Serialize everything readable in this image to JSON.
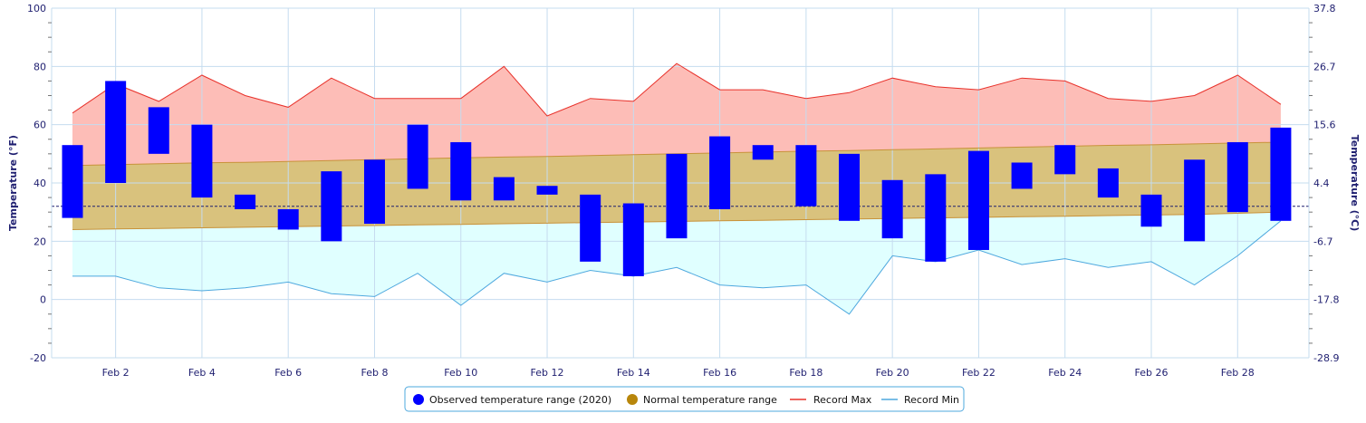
{
  "chart_data": {
    "type": "bar",
    "y_left_label": "Temperature (°F)",
    "y_right_label": "Temperature (°C)",
    "y_left_ticks": [
      -20,
      0,
      20,
      40,
      60,
      80,
      100
    ],
    "y_right_ticks": [
      "-28.9",
      "-17.8",
      "-6.7",
      "4.4",
      "15.6",
      "26.7",
      "37.8"
    ],
    "ylim": [
      -20,
      100
    ],
    "x_ticks": [
      "Feb 2",
      "Feb 4",
      "Feb 6",
      "Feb 8",
      "Feb 10",
      "Feb 12",
      "Feb 14",
      "Feb 16",
      "Feb 18",
      "Feb 20",
      "Feb 22",
      "Feb 24",
      "Feb 26",
      "Feb 28"
    ],
    "days": [
      1,
      2,
      3,
      4,
      5,
      6,
      7,
      8,
      9,
      10,
      11,
      12,
      13,
      14,
      15,
      16,
      17,
      18,
      19,
      20,
      21,
      22,
      23,
      24,
      25,
      26,
      27,
      28,
      29
    ],
    "freezing_line": 32,
    "series": [
      {
        "name": "Observed temperature range (2020)",
        "low": [
          28,
          40,
          50,
          35,
          31,
          24,
          20,
          26,
          38,
          34,
          34,
          36,
          13,
          8,
          21,
          31,
          48,
          32,
          27,
          21,
          13,
          17,
          38,
          43,
          35,
          25,
          20,
          30,
          27
        ],
        "high": [
          53,
          75,
          66,
          60,
          36,
          31,
          44,
          48,
          60,
          54,
          42,
          39,
          36,
          33,
          50,
          56,
          53,
          53,
          50,
          41,
          43,
          51,
          47,
          53,
          45,
          36,
          48,
          54,
          59
        ]
      },
      {
        "name": "Normal temperature range",
        "low": [
          24,
          24.2,
          24.4,
          24.6,
          24.8,
          25,
          25.2,
          25.4,
          25.6,
          25.8,
          26,
          26.2,
          26.4,
          26.6,
          26.8,
          27,
          27.2,
          27.4,
          27.6,
          27.8,
          28,
          28.2,
          28.4,
          28.6,
          28.8,
          29,
          29.2,
          29.6,
          30
        ],
        "high": [
          46,
          46.3,
          46.6,
          46.9,
          47.1,
          47.4,
          47.7,
          48,
          48.3,
          48.6,
          48.9,
          49.1,
          49.4,
          49.7,
          50,
          50.3,
          50.6,
          50.9,
          51.1,
          51.4,
          51.7,
          52,
          52.3,
          52.6,
          52.9,
          53.1,
          53.4,
          53.7,
          54
        ]
      },
      {
        "name": "Record Max",
        "values": [
          64,
          74,
          68,
          77,
          70,
          66,
          76,
          69,
          69,
          69,
          80,
          63,
          69,
          68,
          81,
          72,
          72,
          69,
          71,
          76,
          73,
          72,
          76,
          75,
          69,
          68,
          70,
          77,
          67
        ]
      },
      {
        "name": "Record Min",
        "values": [
          8,
          8,
          4,
          3,
          4,
          6,
          2,
          1,
          9,
          -2,
          9,
          6,
          10,
          8,
          11,
          5,
          4,
          5,
          -5,
          15,
          13,
          17,
          12,
          14,
          11,
          13,
          5,
          15,
          27
        ]
      }
    ],
    "colors": {
      "observed": "#0000ff",
      "normal_fill": "#d9c27d",
      "normal_marker": "#b8860b",
      "normal_edge": "#c8923a",
      "record_max_fill": "#fdbdb7",
      "record_max_line": "#e8312a",
      "record_min_fill": "#e0ffff",
      "record_min_line": "#4ea8de",
      "grid": "#c5dcef",
      "axis_text": "#1f1f70",
      "freezing": "#1f1f70"
    },
    "legend_position": "bottom-center"
  }
}
